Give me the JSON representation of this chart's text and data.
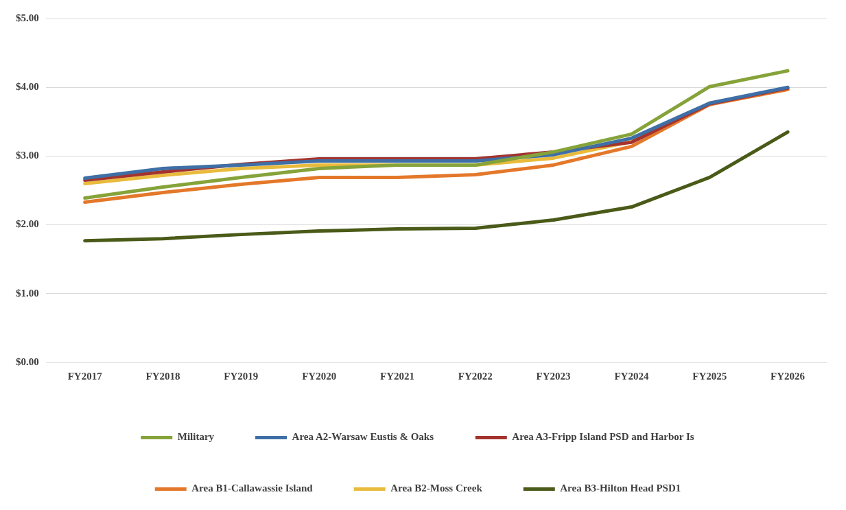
{
  "chart_data": {
    "type": "line",
    "categories": [
      "FY2017",
      "FY2018",
      "FY2019",
      "FY2020",
      "FY2021",
      "FY2022",
      "FY2023",
      "FY2024",
      "FY2025",
      "FY2026"
    ],
    "series": [
      {
        "name": "Military",
        "color": "#86a33a",
        "values": [
          2.39,
          2.55,
          2.69,
          2.82,
          2.87,
          2.87,
          3.06,
          3.32,
          4.01,
          4.24
        ]
      },
      {
        "name": "Area A2-Warsaw Eustis & Oaks",
        "color": "#3e6fa6",
        "values": [
          2.68,
          2.82,
          2.87,
          2.93,
          2.93,
          2.93,
          3.02,
          3.26,
          3.77,
          4.0
        ]
      },
      {
        "name": "Area A3-Fripp Island PSD and Harbor Is",
        "color": "#a4332e",
        "values": [
          2.65,
          2.77,
          2.88,
          2.96,
          2.96,
          2.96,
          3.06,
          3.2,
          3.76,
          3.99
        ]
      },
      {
        "name": "Area B1-Callawassie Island",
        "color": "#e4782a",
        "values": [
          2.33,
          2.47,
          2.59,
          2.69,
          2.69,
          2.73,
          2.87,
          3.14,
          3.75,
          3.97
        ]
      },
      {
        "name": "Area B2-Moss Creek",
        "color": "#e9bb3c",
        "values": [
          2.6,
          2.72,
          2.82,
          2.87,
          2.87,
          2.87,
          2.97,
          3.21,
          3.77,
          3.97
        ]
      },
      {
        "name": "Area B3-Hilton Head PSD1",
        "color": "#4a5a18",
        "values": [
          1.77,
          1.8,
          1.86,
          1.91,
          1.94,
          1.95,
          2.07,
          2.26,
          2.69,
          3.35
        ]
      }
    ],
    "ylim": [
      0,
      5
    ],
    "yticks": [
      {
        "value": 0,
        "label": "$0.00"
      },
      {
        "value": 1,
        "label": "$1.00"
      },
      {
        "value": 2,
        "label": "$2.00"
      },
      {
        "value": 3,
        "label": "$3.00"
      },
      {
        "value": 4,
        "label": "$4.00"
      },
      {
        "value": 5,
        "label": "$5.00"
      }
    ],
    "grid": "y",
    "legend": "bottom",
    "marker": "none",
    "line_style": "solid"
  }
}
